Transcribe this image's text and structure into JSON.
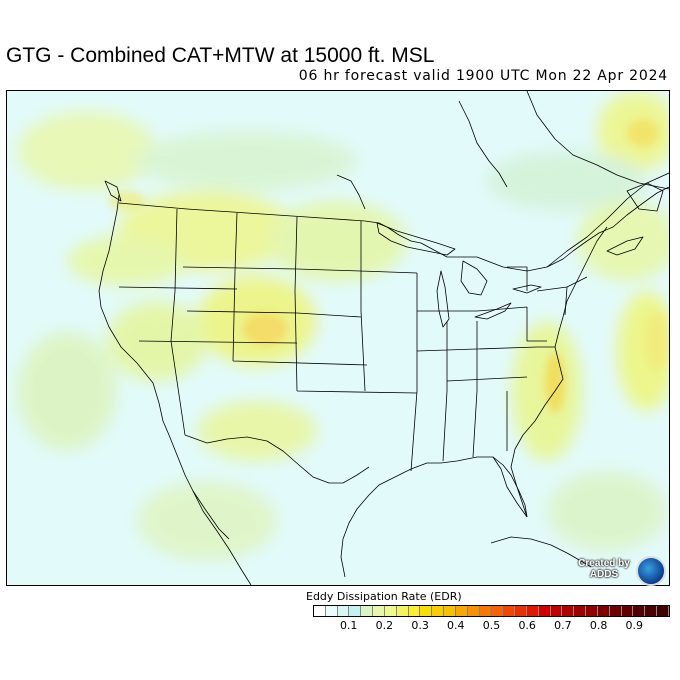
{
  "header": {
    "title": "GTG - Combined CAT+MTW at 15000 ft. MSL",
    "subtitle": "06 hr forecast valid 1900 UTC Mon 22 Apr 2024"
  },
  "legend": {
    "title": "Eddy Dissipation Rate (EDR)",
    "tick_labels": [
      "0.1",
      "0.2",
      "0.3",
      "0.4",
      "0.5",
      "0.6",
      "0.7",
      "0.8",
      "0.9"
    ],
    "colors": [
      "#ffffff",
      "#ecfbfb",
      "#d8f6f6",
      "#c4f2f0",
      "#d8f6c8",
      "#e8f8a8",
      "#f0f890",
      "#f4f460",
      "#f8f030",
      "#f8e000",
      "#f8d000",
      "#f8c000",
      "#f8a800",
      "#f89000",
      "#f87800",
      "#f86000",
      "#f04800",
      "#e83000",
      "#e01800",
      "#d00000",
      "#c00000",
      "#b00000",
      "#a00000",
      "#900000",
      "#800000",
      "#700000",
      "#600000",
      "#500000",
      "#480000",
      "#400000"
    ]
  },
  "badge": {
    "text_line1": "Created by",
    "text_line2": "ADDS",
    "logo": "noaa-logo-icon"
  },
  "map": {
    "background_color": "#e6fbfb",
    "boundary_color": "#000000"
  }
}
